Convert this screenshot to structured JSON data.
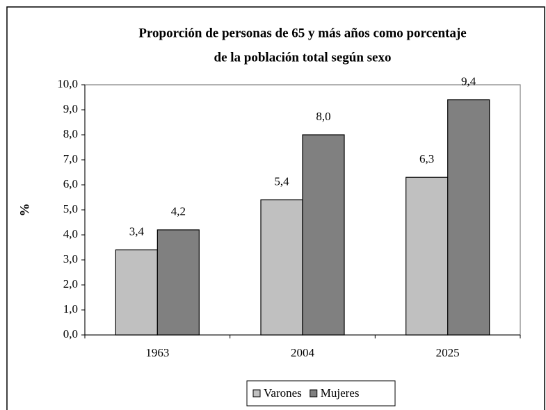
{
  "chart_data": {
    "type": "bar",
    "title": [
      "Proporción de personas de 65 y más años como porcentaje",
      "de la población total según sexo"
    ],
    "ylabel": "%",
    "categories": [
      "1963",
      "2004",
      "2025"
    ],
    "series": [
      {
        "name": "Varones",
        "color": "#c0c0c0",
        "values": [
          3.4,
          5.4,
          6.3
        ],
        "value_labels": [
          "3,4",
          "5,4",
          "6,3"
        ]
      },
      {
        "name": "Mujeres",
        "color": "#808080",
        "values": [
          4.2,
          8.0,
          9.4
        ],
        "value_labels": [
          "4,2",
          "8,0",
          "9,4"
        ]
      }
    ],
    "ylim": [
      0,
      10
    ],
    "yticks": [
      {
        "value": 0,
        "label": "0,0"
      },
      {
        "value": 1,
        "label": "1,0"
      },
      {
        "value": 2,
        "label": "2,0"
      },
      {
        "value": 3,
        "label": "3,0"
      },
      {
        "value": 4,
        "label": "4,0"
      },
      {
        "value": 5,
        "label": "5,0"
      },
      {
        "value": 6,
        "label": "6,0"
      },
      {
        "value": 7,
        "label": "7,0"
      },
      {
        "value": 8,
        "label": "8,0"
      },
      {
        "value": 9,
        "label": "9,0"
      },
      {
        "value": 10,
        "label": "10,0"
      }
    ],
    "grid": false,
    "legend": "bottom"
  }
}
